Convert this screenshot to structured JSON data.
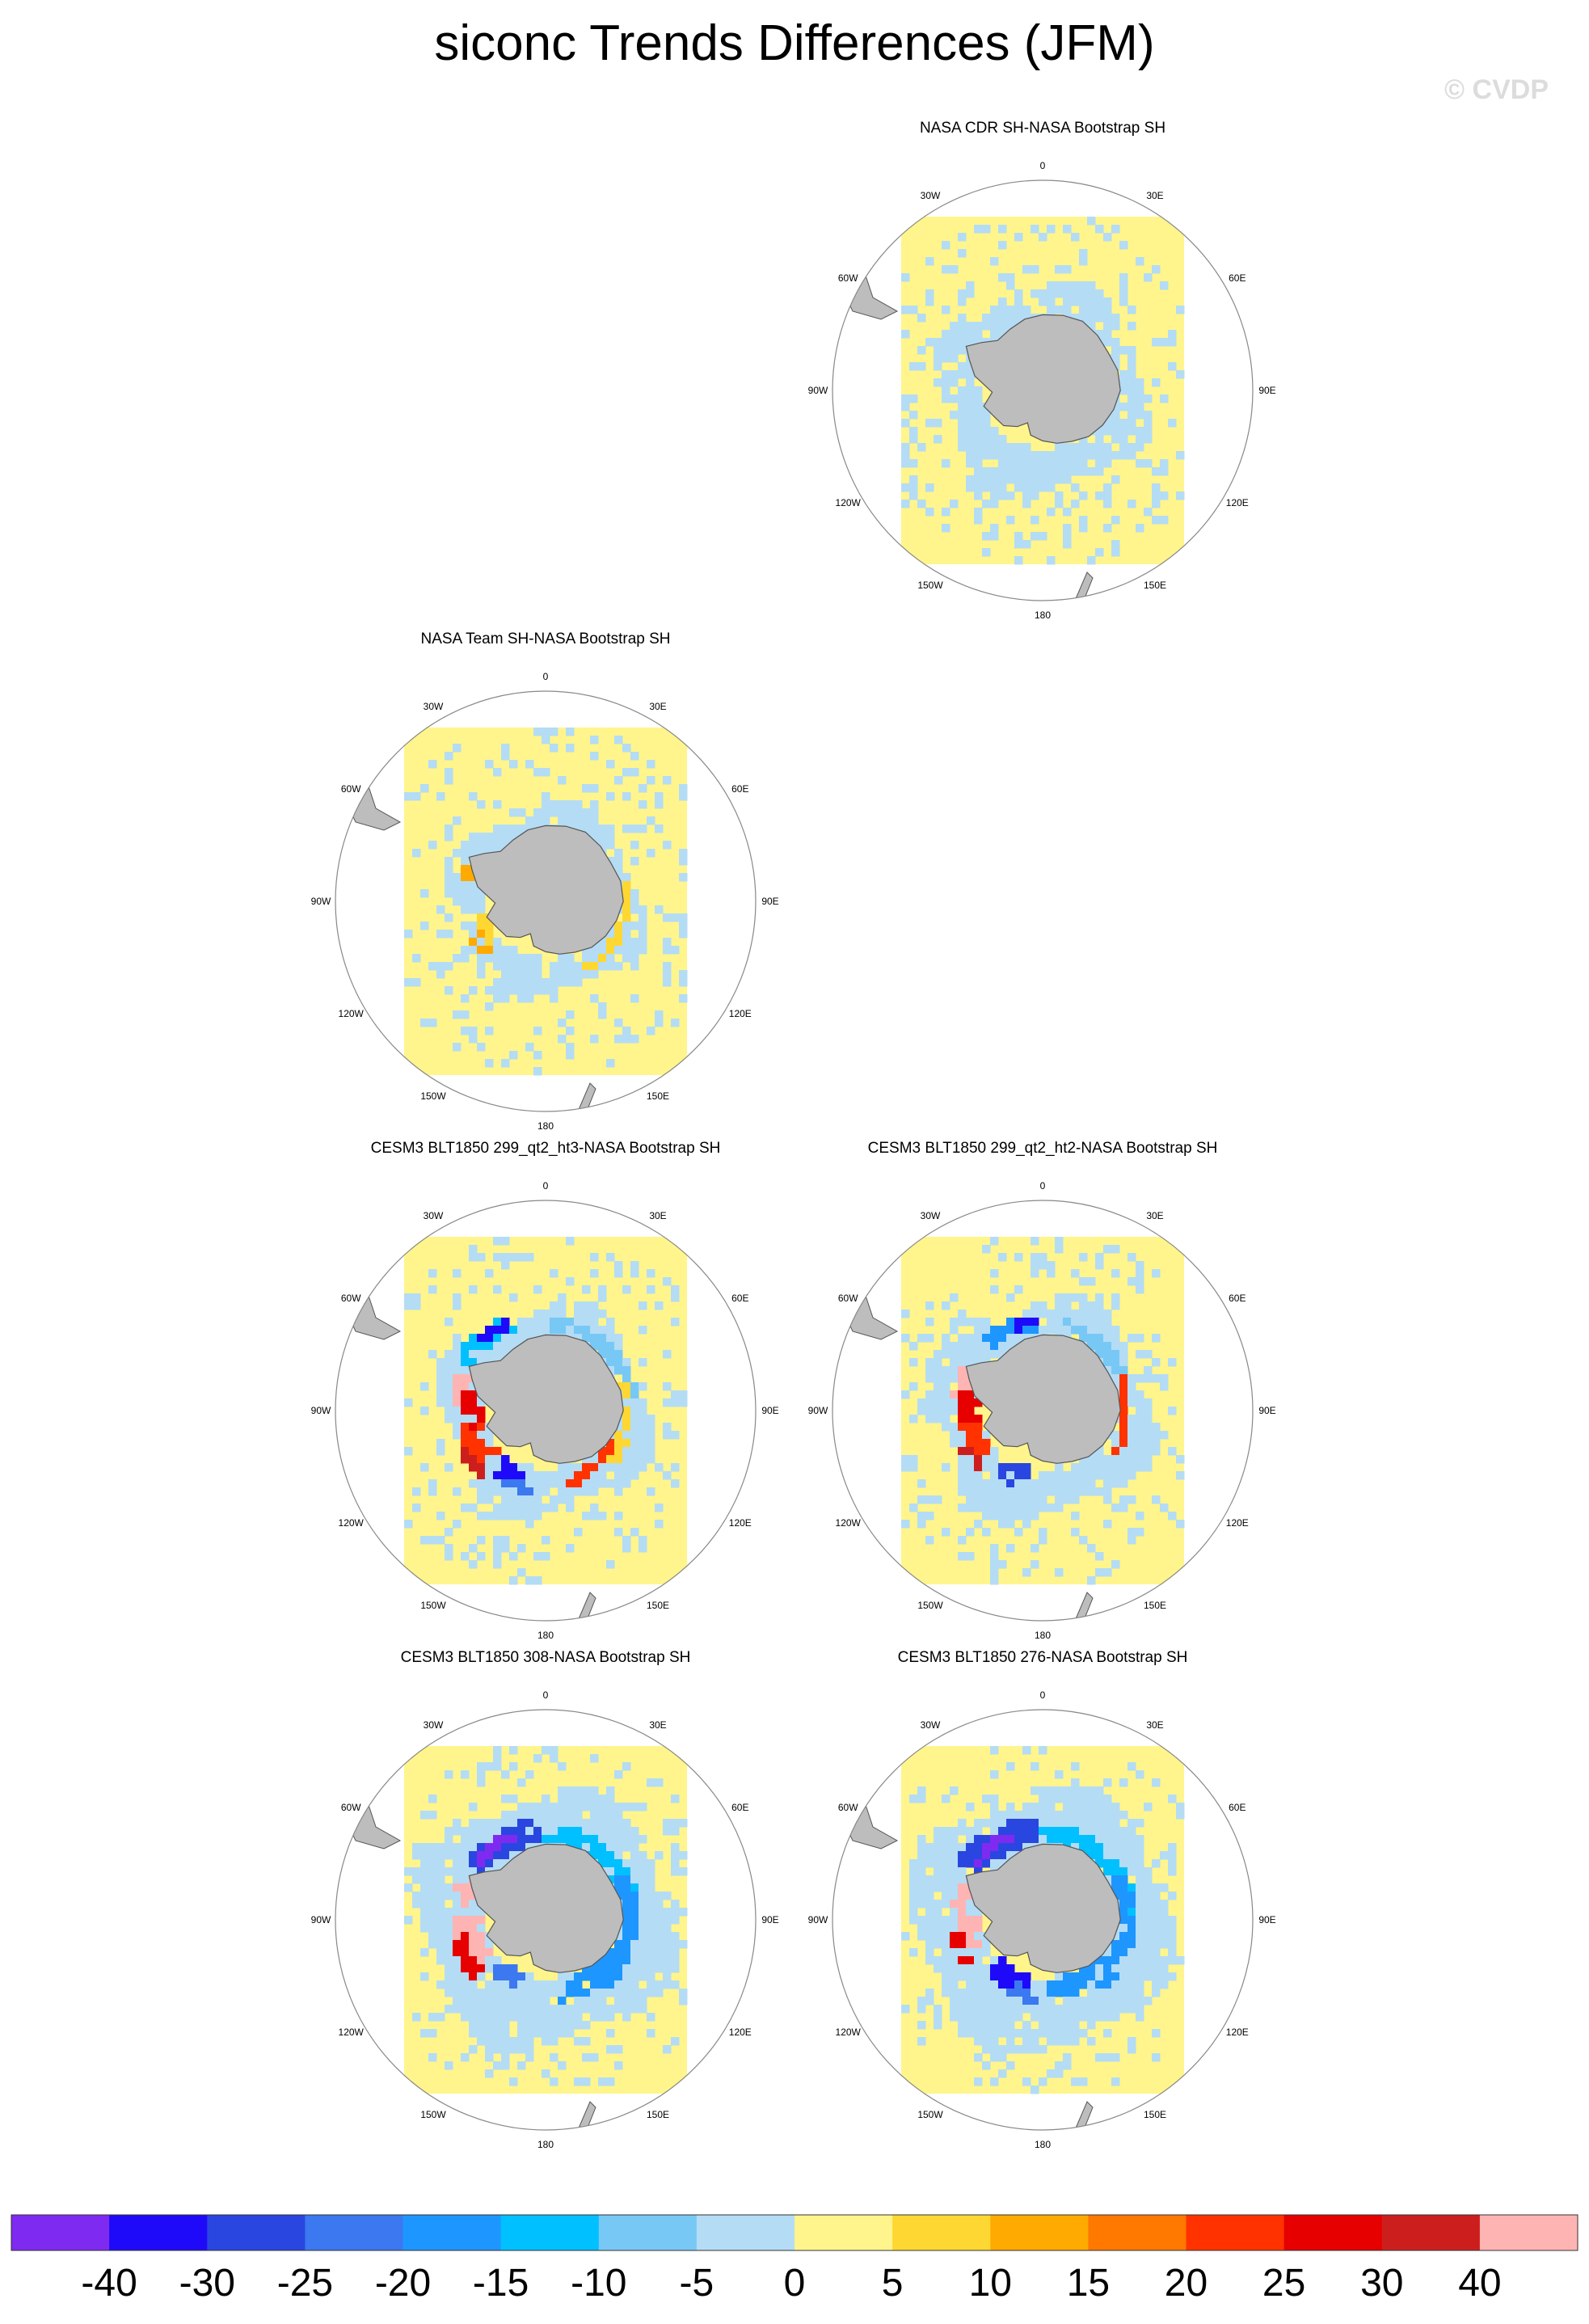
{
  "title": "siconc Trends Differences (JFM)",
  "watermark": "© CVDP",
  "panels": [
    {
      "title": "NASA CDR SH-NASA Bootstrap SH",
      "pattern": "cdr"
    },
    {
      "title": "NASA Team SH-NASA Bootstrap SH",
      "pattern": "team"
    },
    {
      "title": "CESM3 BLT1850 299_qt2_ht3-NASA Bootstrap SH",
      "pattern": "ht3"
    },
    {
      "title": "CESM3 BLT1850 299_qt2_ht2-NASA Bootstrap SH",
      "pattern": "ht2"
    },
    {
      "title": "CESM3 BLT1850 308-NASA Bootstrap SH",
      "pattern": "m308"
    },
    {
      "title": "CESM3 BLT1850 276-NASA Bootstrap SH",
      "pattern": "m276"
    }
  ],
  "longitude_labels": [
    "0",
    "30E",
    "60E",
    "90E",
    "120E",
    "150E",
    "180",
    "150W",
    "120W",
    "90W",
    "60W",
    "30W"
  ],
  "colorbar": {
    "colors": [
      "#7f2af0",
      "#1e0af8",
      "#2a46e0",
      "#3c78f0",
      "#1e96ff",
      "#00c0ff",
      "#78c8f5",
      "#b4dcf5",
      "#fff58c",
      "#ffd732",
      "#ffaa00",
      "#ff7800",
      "#ff3200",
      "#e60000",
      "#cd1e1e",
      "#ffb4b4"
    ],
    "labels": [
      "-40",
      "-30",
      "-25",
      "-20",
      "-15",
      "-10",
      "-5",
      "0",
      "5",
      "10",
      "15",
      "20",
      "25",
      "30",
      "40"
    ]
  },
  "colors": {
    "land": "#bdbdbd",
    "background_field": "#fff58c"
  }
}
